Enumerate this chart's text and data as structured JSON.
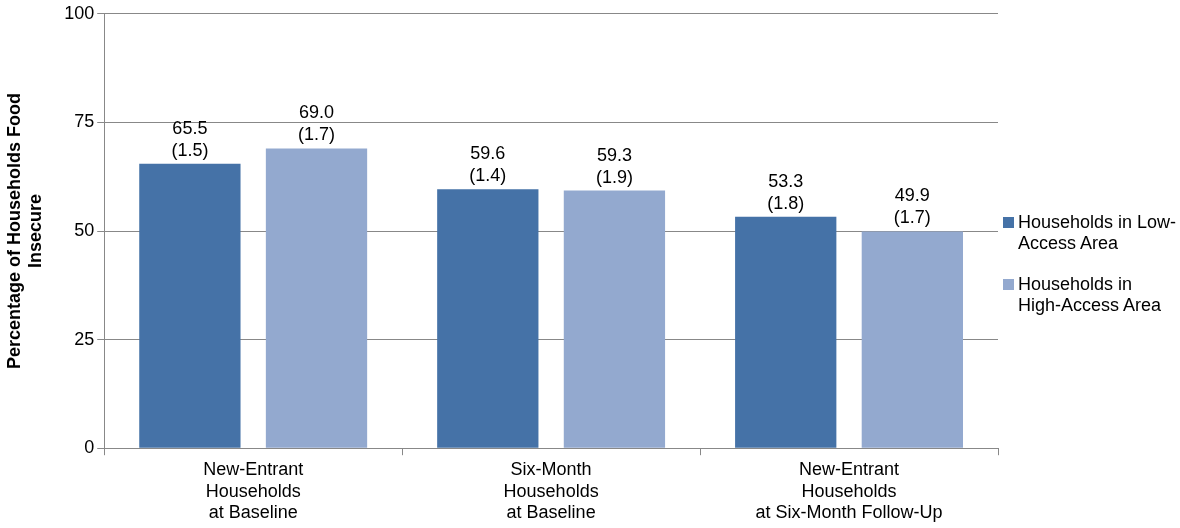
{
  "chart_data": {
    "type": "bar",
    "ylabel": "Percentage of Households Food\nInsecure",
    "categories": [
      "New-Entrant\nHouseholds\nat Baseline",
      "Six-Month\nHouseholds\nat Baseline",
      "New-Entrant\nHouseholds\nat Six-Month Follow-Up"
    ],
    "series": [
      {
        "name": "Households in Low-Access Area",
        "color": "#4572a7",
        "values": [
          65.5,
          59.6,
          53.3
        ],
        "value_labels": [
          "65.5\n(1.5)",
          "59.6\n(1.4)",
          "53.3\n(1.8)"
        ]
      },
      {
        "name": "Households in High-Access Area",
        "color": "#93a9cf",
        "values": [
          69.0,
          59.3,
          49.9
        ],
        "value_labels": [
          "69.0\n(1.7)",
          "59.3\n(1.9)",
          "49.9\n(1.7)"
        ]
      }
    ],
    "ylim": [
      0,
      100
    ],
    "yticks": [
      0,
      25,
      50,
      75,
      100
    ],
    "grid": "y",
    "legend": "right"
  }
}
